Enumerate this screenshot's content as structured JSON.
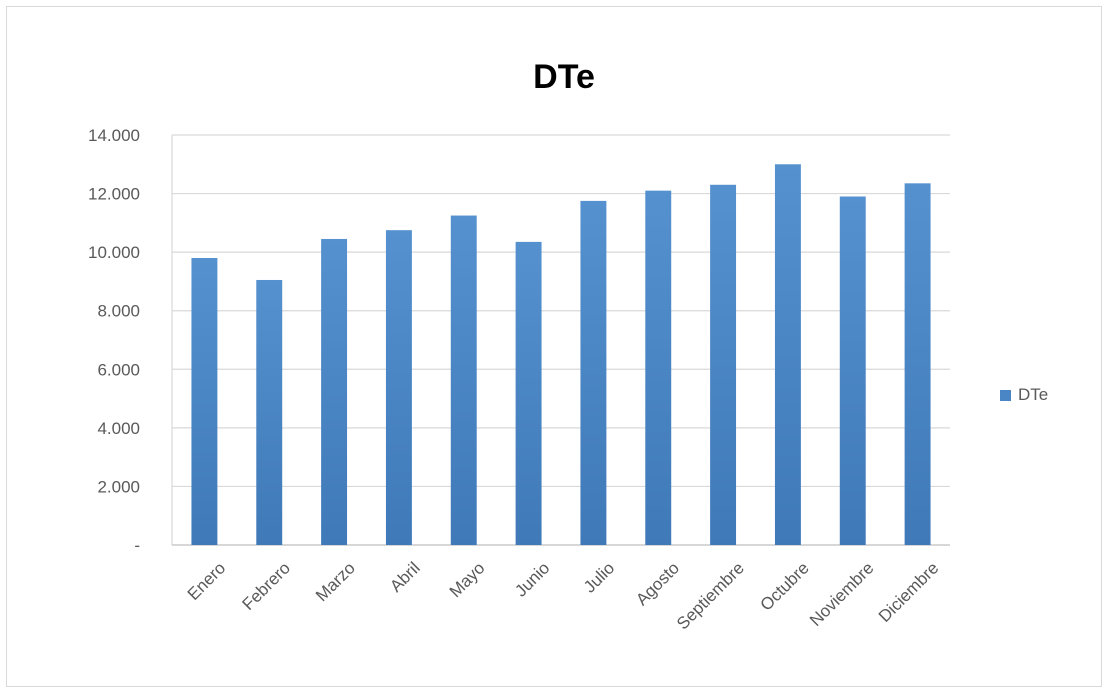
{
  "chart_data": {
    "type": "bar",
    "title": "DTe",
    "xlabel": "",
    "ylabel": "",
    "categories": [
      "Enero",
      "Febrero",
      "Marzo",
      "Abril",
      "Mayo",
      "Junio",
      "Julio",
      "Agosto",
      "Septiembre",
      "Octubre",
      "Noviembre",
      "Diciembre"
    ],
    "series": [
      {
        "name": "DTe",
        "values": [
          9800,
          9050,
          10450,
          10750,
          11250,
          10350,
          11750,
          12100,
          12300,
          13000,
          11900,
          12350
        ]
      }
    ],
    "ylim": [
      0,
      14000
    ],
    "yticks": [
      0,
      2000,
      4000,
      6000,
      8000,
      10000,
      12000,
      14000
    ],
    "ytick_labels": [
      "-",
      "2.000",
      "4.000",
      "6.000",
      "8.000",
      "10.000",
      "12.000",
      "14.000"
    ],
    "grid": true,
    "legend_position": "right",
    "bar_color": "#4a86c6"
  }
}
